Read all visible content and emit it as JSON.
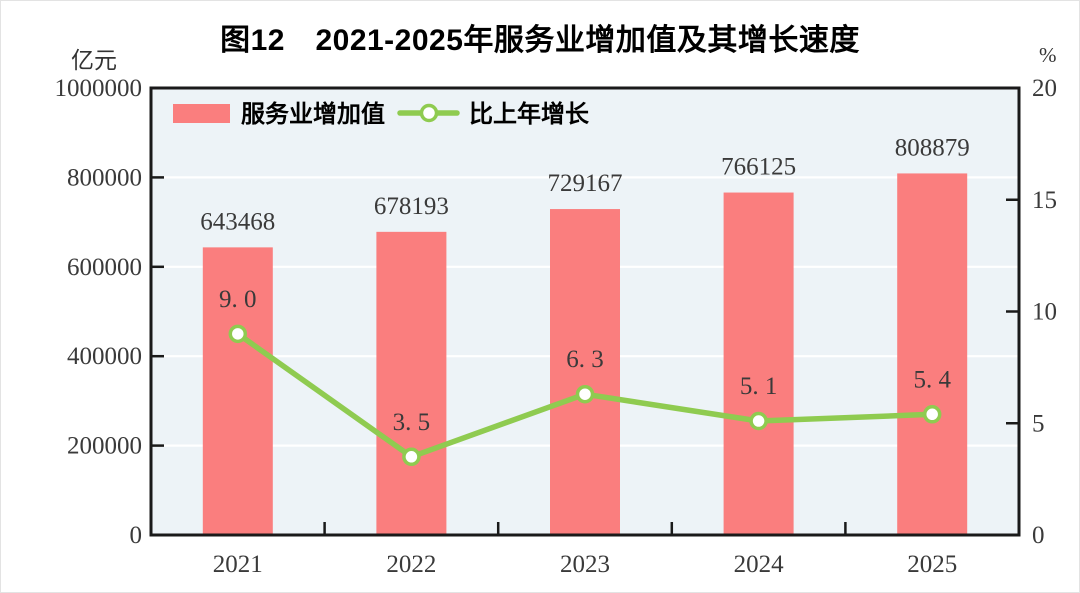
{
  "title": "图12　2021-2025年服务业增加值及其增长速度",
  "left_axis": {
    "unit": "亿元",
    "ticks": [
      1000000,
      800000,
      600000,
      400000,
      200000,
      0
    ]
  },
  "right_axis": {
    "unit": "%",
    "ticks": [
      20,
      15,
      10,
      5,
      0
    ]
  },
  "legend": [
    {
      "label": "服务业增加值",
      "type": "bar"
    },
    {
      "label": "比上年增长",
      "type": "line"
    }
  ],
  "colors": {
    "bar": "#FA7E7E",
    "line": "#8FCB50",
    "marker_fill": "#FFFFFF",
    "plot_bg": "#EDF3F7",
    "grid": "#FFFFFF",
    "axis": "#1A1A1A",
    "label_text": "#3A3A3A"
  },
  "chart_data": {
    "type": "bar",
    "combo": "bar+line",
    "title": "图12　2021-2025年服务业增加值及其增长速度",
    "categories": [
      "2021",
      "2022",
      "2023",
      "2024",
      "2025"
    ],
    "series": [
      {
        "name": "服务业增加值",
        "type": "bar",
        "axis": "left",
        "unit": "亿元",
        "values": [
          643468,
          678193,
          729167,
          766125,
          808879
        ],
        "labels": [
          "643468",
          "678193",
          "729167",
          "766125",
          "808879"
        ]
      },
      {
        "name": "比上年增长",
        "type": "line",
        "axis": "right",
        "unit": "%",
        "values": [
          9.0,
          3.5,
          6.3,
          5.1,
          5.4
        ],
        "labels": [
          "9. 0",
          "3. 5",
          "6. 3",
          "5. 1",
          "5. 4"
        ]
      }
    ],
    "left_ylim": [
      0,
      1000000
    ],
    "right_ylim": [
      0,
      20
    ],
    "grid": true,
    "legend_position": "top-left-inside"
  }
}
